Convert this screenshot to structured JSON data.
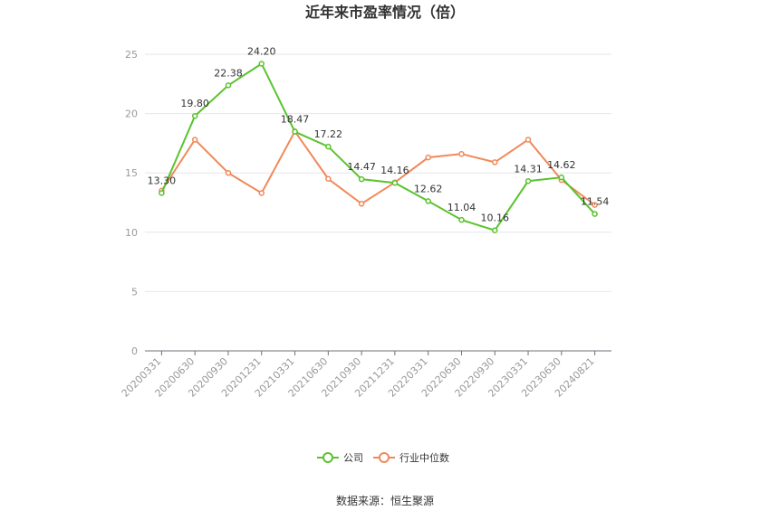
{
  "chart_data": {
    "type": "line",
    "title": "近年来市盈率情况（倍）",
    "categories": [
      "20200331",
      "20200630",
      "20200930",
      "20201231",
      "20210331",
      "20210630",
      "20210930",
      "20211231",
      "20220331",
      "20220630",
      "20220930",
      "20230331",
      "20230630",
      "20240821"
    ],
    "series": [
      {
        "name": "公司",
        "color": "#5ac32e",
        "values": [
          13.3,
          19.8,
          22.38,
          24.2,
          18.47,
          17.22,
          14.47,
          14.16,
          12.62,
          11.04,
          10.16,
          14.31,
          14.62,
          11.54
        ],
        "show_labels": true
      },
      {
        "name": "行业中位数",
        "color": "#f0895a",
        "values": [
          13.5,
          17.8,
          15.0,
          13.3,
          18.5,
          14.5,
          12.4,
          14.2,
          16.3,
          16.6,
          15.9,
          17.8,
          14.4,
          12.3
        ],
        "show_labels": false
      }
    ],
    "y_ticks": [
      0,
      5,
      10,
      15,
      20,
      25
    ],
    "ylim": [
      0,
      25
    ],
    "grid": true,
    "legend_position": "bottom-center"
  },
  "source_text": "数据来源：恒生聚源"
}
